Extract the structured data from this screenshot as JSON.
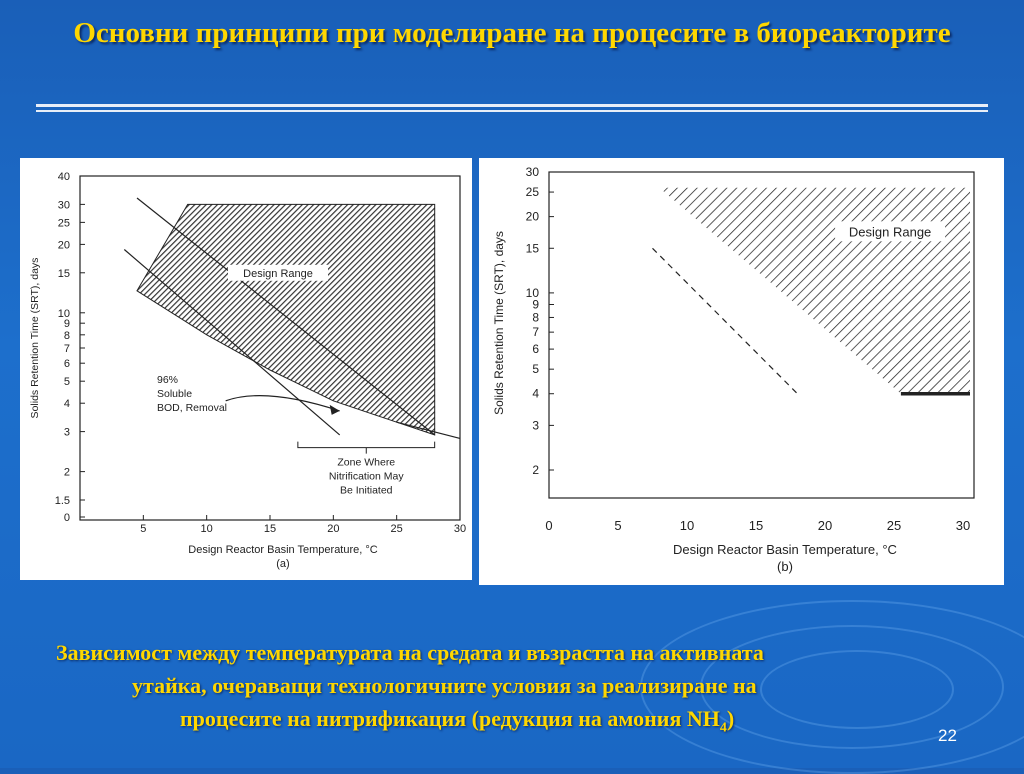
{
  "slide": {
    "title": "Основни принципи при моделиране на процесите в биореакторите",
    "caption": {
      "line1": "Зависимост между температурата на средата и възрастта на активната",
      "line2": "утайка, очераващи технологичните условия за реализиране на",
      "line3_main": "процесите на нитрификация (редукция на амония NH",
      "line3_sub": "4",
      "line3_end": ")"
    },
    "page_number": "22"
  },
  "colors": {
    "title": "#ffd700",
    "background": "#1a66c4",
    "panel": "#ffffff"
  },
  "chart_data": [
    {
      "type": "area",
      "panel_label": "(a)",
      "xlabel": "Design Reactor Basin Temperature, °C",
      "ylabel": "Solids Retention Time (SRT), days",
      "xlim": [
        0,
        30
      ],
      "ylim": [
        0,
        40
      ],
      "y_scale": "log",
      "x_ticks": [
        "5",
        "10",
        "15",
        "20",
        "25",
        "30"
      ],
      "y_ticks": [
        "0",
        "1.5",
        "2",
        "3",
        "4",
        "5",
        "6",
        "7",
        "8",
        "9",
        "10",
        "15",
        "20",
        "25",
        "30",
        "40"
      ],
      "annotations": {
        "design_range": "Design Range",
        "bod_line1": "96%",
        "bod_line2": "Soluble",
        "bod_line3": "BOD, Removal",
        "zone_line1": "Zone Where",
        "zone_line2": "Nitrification May",
        "zone_line3": "Be Initiated"
      },
      "design_range_region": {
        "upper": [
          {
            "x": 4.5,
            "y": 12.5
          },
          {
            "x": 8.5,
            "y": 30
          },
          {
            "x": 28,
            "y": 30
          }
        ],
        "lower": [
          {
            "x": 4.5,
            "y": 12.5
          },
          {
            "x": 10,
            "y": 8
          },
          {
            "x": 15,
            "y": 5.6
          },
          {
            "x": 20,
            "y": 4.1
          },
          {
            "x": 25,
            "y": 3.3
          },
          {
            "x": 28,
            "y": 2.9
          }
        ]
      },
      "series": [
        {
          "values": [
            {
              "x": 4.5,
              "y": 32
            },
            {
              "x": 28,
              "y": 2.9
            }
          ]
        },
        {
          "values": [
            {
              "x": 3.5,
              "y": 19
            },
            {
              "x": 20.5,
              "y": 2.9
            }
          ]
        },
        {
          "values": [
            {
              "x": 25,
              "y": 3.3
            },
            {
              "x": 30,
              "y": 2.8
            }
          ]
        }
      ]
    },
    {
      "type": "area",
      "panel_label": "(b)",
      "xlabel": "Design Reactor Basin Temperature, °C",
      "ylabel": "Solids Retention Time (SRT), days",
      "xlim": [
        0,
        30
      ],
      "ylim": [
        2,
        30
      ],
      "y_scale": "log",
      "x_ticks": [
        "0",
        "5",
        "10",
        "15",
        "20",
        "25",
        "30"
      ],
      "y_ticks": [
        "2",
        "3",
        "4",
        "5",
        "6",
        "7",
        "8",
        "9",
        "10",
        "15",
        "20",
        "25",
        "30"
      ],
      "annotations": {
        "design_range": "Design Range"
      },
      "design_range_region": [
        {
          "x": 8,
          "y": 26
        },
        {
          "x": 31,
          "y": 26
        },
        {
          "x": 31,
          "y": 4
        },
        {
          "x": 25.5,
          "y": 4
        }
      ],
      "series": [
        {
          "style": "dashed",
          "values": [
            {
              "x": 7.5,
              "y": 15
            },
            {
              "x": 18,
              "y": 4
            }
          ]
        },
        {
          "style": "bold",
          "values": [
            {
              "x": 25.5,
              "y": 4
            },
            {
              "x": 31,
              "y": 4
            }
          ]
        }
      ]
    }
  ]
}
